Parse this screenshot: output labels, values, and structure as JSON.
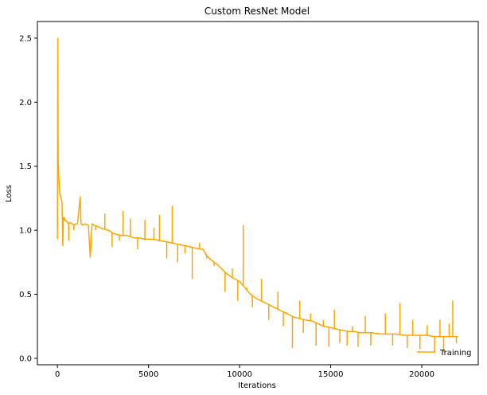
{
  "chart_data": {
    "type": "line",
    "title": "Custom ResNet Model",
    "xlabel": "Iterations",
    "ylabel": "Loss",
    "xlim": [
      -1100,
      23100
    ],
    "ylim": [
      -0.05,
      2.63
    ],
    "x_ticks": [
      0,
      5000,
      10000,
      15000,
      20000
    ],
    "x_tick_labels": [
      "0",
      "5000",
      "10000",
      "15000",
      "20000"
    ],
    "y_ticks": [
      0.0,
      0.5,
      1.0,
      1.5,
      2.0,
      2.5
    ],
    "y_tick_labels": [
      "0.0",
      "0.5",
      "1.0",
      "1.5",
      "2.0",
      "2.5"
    ],
    "grid": false,
    "legend_position": "bottom-right",
    "series": [
      {
        "name": "Training",
        "color": "#ffa500",
        "x": [
          0,
          20,
          40,
          60,
          80,
          100,
          130,
          160,
          200,
          250,
          300,
          320,
          350,
          380,
          400,
          500,
          600,
          700,
          800,
          900,
          1000,
          1100,
          1250,
          1300,
          1400,
          1500,
          1700,
          1800,
          1900,
          2000,
          2200,
          2500,
          2800,
          3000,
          3200,
          3500,
          3800,
          4000,
          4200,
          4500,
          4800,
          5000,
          5300,
          5600,
          6000,
          6300,
          6600,
          7000,
          7300,
          7600,
          8000,
          8200,
          8500,
          8800,
          9000,
          9300,
          9600,
          10000,
          10300,
          10600,
          11000,
          11300,
          11600,
          12000,
          12300,
          12600,
          13000,
          13300,
          13600,
          14000,
          14300,
          14600,
          15000,
          15300,
          15600,
          16000,
          16300,
          16600,
          17000,
          17300,
          17600,
          18000,
          18300,
          18600,
          19000,
          19300,
          19600,
          20000,
          20300,
          20600,
          21000,
          21300,
          21600,
          21800,
          22000
        ],
        "values": [
          0.93,
          2.5,
          1.55,
          1.45,
          1.4,
          1.35,
          1.3,
          1.27,
          1.25,
          1.22,
          0.88,
          1.1,
          1.08,
          1.1,
          1.08,
          1.07,
          1.05,
          1.06,
          1.05,
          1.04,
          1.05,
          1.05,
          1.26,
          1.05,
          1.04,
          1.05,
          1.04,
          0.79,
          1.05,
          1.04,
          1.03,
          1.01,
          1.0,
          0.98,
          0.97,
          0.96,
          0.96,
          0.95,
          0.94,
          0.94,
          0.93,
          0.93,
          0.93,
          0.92,
          0.91,
          0.9,
          0.89,
          0.88,
          0.87,
          0.86,
          0.85,
          0.8,
          0.76,
          0.73,
          0.7,
          0.66,
          0.63,
          0.6,
          0.55,
          0.5,
          0.46,
          0.44,
          0.42,
          0.39,
          0.37,
          0.35,
          0.32,
          0.31,
          0.3,
          0.29,
          0.27,
          0.25,
          0.24,
          0.23,
          0.22,
          0.21,
          0.21,
          0.2,
          0.2,
          0.2,
          0.19,
          0.19,
          0.19,
          0.19,
          0.18,
          0.18,
          0.18,
          0.18,
          0.18,
          0.17,
          0.17,
          0.17,
          0.17,
          0.17,
          0.17
        ]
      }
    ],
    "spikes": [
      [
        620,
        0.92
      ],
      [
        900,
        1.0
      ],
      [
        1250,
        1.26
      ],
      [
        1800,
        0.79
      ],
      [
        2100,
        1.0
      ],
      [
        2600,
        1.13
      ],
      [
        3000,
        0.87
      ],
      [
        3400,
        0.92
      ],
      [
        3600,
        1.15
      ],
      [
        4000,
        1.09
      ],
      [
        4400,
        0.85
      ],
      [
        4800,
        1.08
      ],
      [
        5300,
        1.02
      ],
      [
        5600,
        1.12
      ],
      [
        6000,
        0.78
      ],
      [
        6300,
        1.19
      ],
      [
        6600,
        0.75
      ],
      [
        7000,
        0.82
      ],
      [
        7400,
        0.62
      ],
      [
        7800,
        0.9
      ],
      [
        8200,
        0.78
      ],
      [
        8600,
        0.72
      ],
      [
        9200,
        0.52
      ],
      [
        9600,
        0.7
      ],
      [
        9900,
        0.45
      ],
      [
        10200,
        1.04
      ],
      [
        10400,
        0.55
      ],
      [
        10700,
        0.4
      ],
      [
        11200,
        0.62
      ],
      [
        11600,
        0.3
      ],
      [
        12100,
        0.52
      ],
      [
        12400,
        0.25
      ],
      [
        12900,
        0.08
      ],
      [
        13300,
        0.45
      ],
      [
        13500,
        0.2
      ],
      [
        13900,
        0.35
      ],
      [
        14200,
        0.1
      ],
      [
        14600,
        0.3
      ],
      [
        14900,
        0.09
      ],
      [
        15200,
        0.38
      ],
      [
        15500,
        0.12
      ],
      [
        15900,
        0.1
      ],
      [
        16200,
        0.25
      ],
      [
        16500,
        0.09
      ],
      [
        16900,
        0.33
      ],
      [
        17200,
        0.1
      ],
      [
        17600,
        0.2
      ],
      [
        18000,
        0.35
      ],
      [
        18400,
        0.1
      ],
      [
        18800,
        0.43
      ],
      [
        19200,
        0.08
      ],
      [
        19500,
        0.3
      ],
      [
        19900,
        0.07
      ],
      [
        20300,
        0.26
      ],
      [
        20700,
        0.04
      ],
      [
        21000,
        0.3
      ],
      [
        21200,
        0.05
      ],
      [
        21500,
        0.27
      ],
      [
        21700,
        0.45
      ],
      [
        21900,
        0.12
      ]
    ]
  }
}
